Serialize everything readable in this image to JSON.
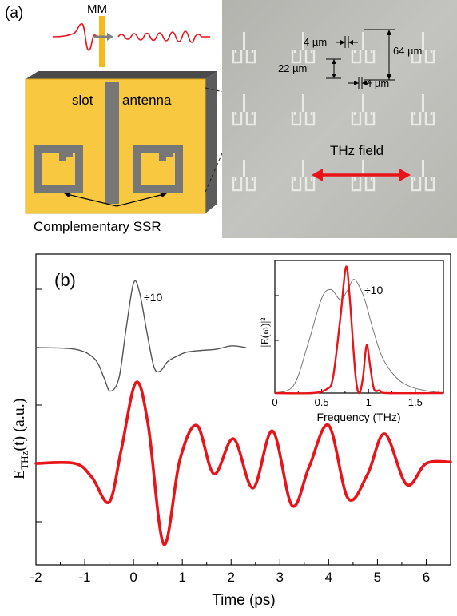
{
  "panel_a": {
    "label": "(a)",
    "mm_label": "MM",
    "slot_label": "slot",
    "antenna_label": "antenna",
    "ssr_caption": "Complementary SSR",
    "micro": {
      "dim_width_top": "4 µm",
      "dim_height": "64 µm",
      "dim_gap": "22 µm",
      "dim_width_bottom": "4 µm",
      "field_label": "THz field"
    }
  },
  "panel_b": {
    "label": "(b)",
    "ylabel_main": "E",
    "ylabel_sub": "THz",
    "ylabel_rest": "(t) (a.u.)",
    "xlabel": "Time (ps)",
    "scale_note": "÷10",
    "inset": {
      "ylabel": "|E(ω)|²",
      "xlabel": "Frequency (THz)",
      "scale_note": "÷10"
    }
  },
  "chart_data": [
    {
      "type": "line",
      "xlabel": "Time (ps)",
      "ylabel": "E_THz(t) (a.u.)",
      "xlim": [
        -2,
        6.5
      ],
      "x_ticks": [
        "-2",
        "-1",
        "0",
        "1",
        "2",
        "3",
        "4",
        "5",
        "6"
      ],
      "y_tick_labels": false,
      "series": [
        {
          "color": "#555555",
          "x": [
            -2.0,
            -1.2,
            -0.8,
            -0.6,
            -0.48,
            -0.3,
            -0.15,
            0.0,
            0.12,
            0.28,
            0.42,
            0.55,
            0.7,
            0.9,
            1.1,
            1.4,
            1.7,
            2.0,
            2.3
          ],
          "values": [
            0.0,
            -0.03,
            -0.2,
            -0.55,
            -0.78,
            -0.55,
            0.35,
            1.15,
            1.0,
            0.25,
            -0.35,
            -0.42,
            -0.25,
            -0.15,
            -0.08,
            -0.05,
            -0.03,
            0.03,
            0.0
          ]
        },
        {
          "color": "#e8141a",
          "x": [
            -2.0,
            -1.2,
            -0.85,
            -0.5,
            -0.25,
            0.05,
            0.3,
            0.62,
            0.95,
            1.3,
            1.65,
            2.05,
            2.45,
            2.85,
            3.25,
            3.6,
            4.0,
            4.4,
            4.8,
            5.15,
            5.6,
            6.0,
            6.5
          ],
          "values": [
            0.0,
            0.0,
            -0.2,
            -0.55,
            0.2,
            1.15,
            0.55,
            -1.15,
            0.05,
            0.54,
            -0.15,
            0.35,
            -0.35,
            0.46,
            -0.6,
            -0.05,
            0.54,
            -0.5,
            -0.15,
            0.42,
            -0.3,
            0.0,
            0.02
          ]
        }
      ]
    },
    {
      "type": "line",
      "xlabel": "Frequency (THz)",
      "ylabel": "|E(ω)|²",
      "xlim": [
        0,
        1.8
      ],
      "x_ticks": [
        "0",
        "0.5",
        "1",
        "1.5"
      ],
      "series": [
        {
          "color": "#777777",
          "x": [
            0.0,
            0.2,
            0.35,
            0.5,
            0.6,
            0.7,
            0.78,
            0.85,
            0.95,
            1.05,
            1.15,
            1.3,
            1.45,
            1.6,
            1.8
          ],
          "values": [
            0.0,
            0.06,
            0.38,
            0.75,
            0.82,
            0.74,
            0.82,
            0.9,
            0.76,
            0.5,
            0.28,
            0.12,
            0.05,
            0.02,
            0.0
          ]
        },
        {
          "color": "#e8141a",
          "x": [
            0.0,
            0.4,
            0.55,
            0.62,
            0.7,
            0.76,
            0.8,
            0.86,
            0.9,
            0.94,
            0.98,
            1.02,
            1.06,
            1.12,
            1.2,
            1.8
          ],
          "values": [
            0.0,
            0.0,
            0.03,
            0.12,
            0.6,
            1.0,
            0.75,
            0.15,
            0.0,
            0.12,
            0.38,
            0.2,
            0.03,
            0.02,
            0.0,
            0.0
          ]
        }
      ]
    }
  ]
}
